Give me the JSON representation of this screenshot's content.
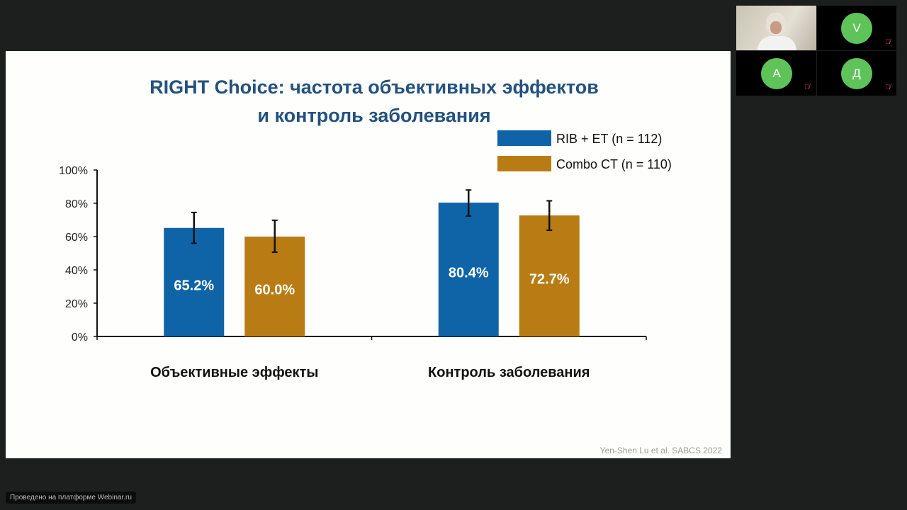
{
  "conference": {
    "participants": [
      {
        "type": "video",
        "description_icon": "webcam-video"
      },
      {
        "initial": "V",
        "muted": true
      },
      {
        "initial": "А",
        "muted": true
      },
      {
        "initial": "Д",
        "muted": true
      }
    ],
    "avatar_color": "#5ec45a",
    "footer": "Проведено на платформе Webinar.ru"
  },
  "slide": {
    "title_line1": "RIGHT Choice: частота объективных эффектов",
    "title_line2": "и контроль заболевания",
    "source": "Yen-Shen Lu et al. SABCS 2022"
  },
  "chart_data": {
    "type": "bar",
    "categories": [
      "Объективные эффекты",
      "Контроль заболевания"
    ],
    "series": [
      {
        "name": "RIB + ET (n = 112)",
        "color": "#0e64a6",
        "values": [
          65.2,
          80.4
        ],
        "labels": [
          "65.2%",
          "80.4%"
        ],
        "error_low": [
          56,
          72.3
        ],
        "error_high": [
          74.5,
          88
        ]
      },
      {
        "name": "Combo CT (n = 110)",
        "color": "#b97c14",
        "values": [
          60.0,
          72.7
        ],
        "labels": [
          "60.0%",
          "72.7%"
        ],
        "error_low": [
          50.6,
          63.8
        ],
        "error_high": [
          69.8,
          81.5
        ]
      }
    ],
    "ylim": [
      0,
      100
    ],
    "yticks": [
      "0%",
      "20%",
      "40%",
      "60%",
      "80%",
      "100%"
    ],
    "legend": "top-right",
    "grid": false
  }
}
